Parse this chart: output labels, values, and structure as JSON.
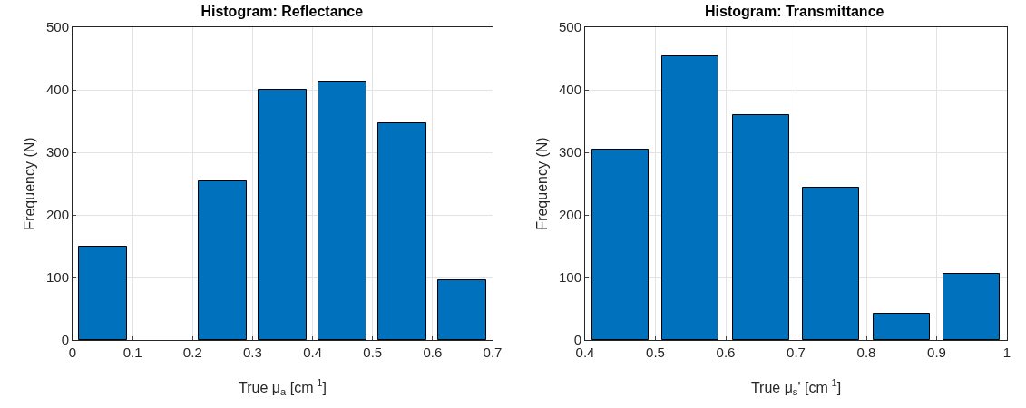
{
  "chart_data": [
    {
      "type": "histogram",
      "title": "Histogram: Reflectance",
      "xlabel": "True μ$_{a}$ [cm$^{-1}$]",
      "ylabel": "Frequency (N)",
      "bins": [
        0,
        0.1,
        0.2,
        0.3,
        0.4,
        0.5,
        0.6,
        0.7
      ],
      "values": [
        150,
        0,
        253,
        400,
        413,
        347,
        96
      ],
      "color": "#0072bd",
      "xlim": [
        0,
        0.7
      ],
      "xticks": [
        0,
        0.1,
        0.2,
        0.3,
        0.4,
        0.5,
        0.6,
        0.7
      ],
      "ylim": [
        0,
        500
      ],
      "yticks": [
        0,
        100,
        200,
        300,
        400,
        500
      ],
      "grid": true
    },
    {
      "type": "histogram",
      "title": "Histogram: Transmittance",
      "xlabel": "True μ$_{s}$' [cm$^{-1}$]",
      "ylabel": "Frequency (N)",
      "bins": [
        0.4,
        0.5,
        0.6,
        0.7,
        0.8,
        0.9,
        1.0
      ],
      "values": [
        304,
        453,
        360,
        244,
        42,
        106
      ],
      "color": "#0072bd",
      "xlim": [
        0.4,
        1
      ],
      "xticks": [
        0.4,
        0.5,
        0.6,
        0.7,
        0.8,
        0.9,
        1
      ],
      "ylim": [
        0,
        500
      ],
      "yticks": [
        0,
        100,
        200,
        300,
        400,
        500
      ],
      "grid": true
    }
  ]
}
